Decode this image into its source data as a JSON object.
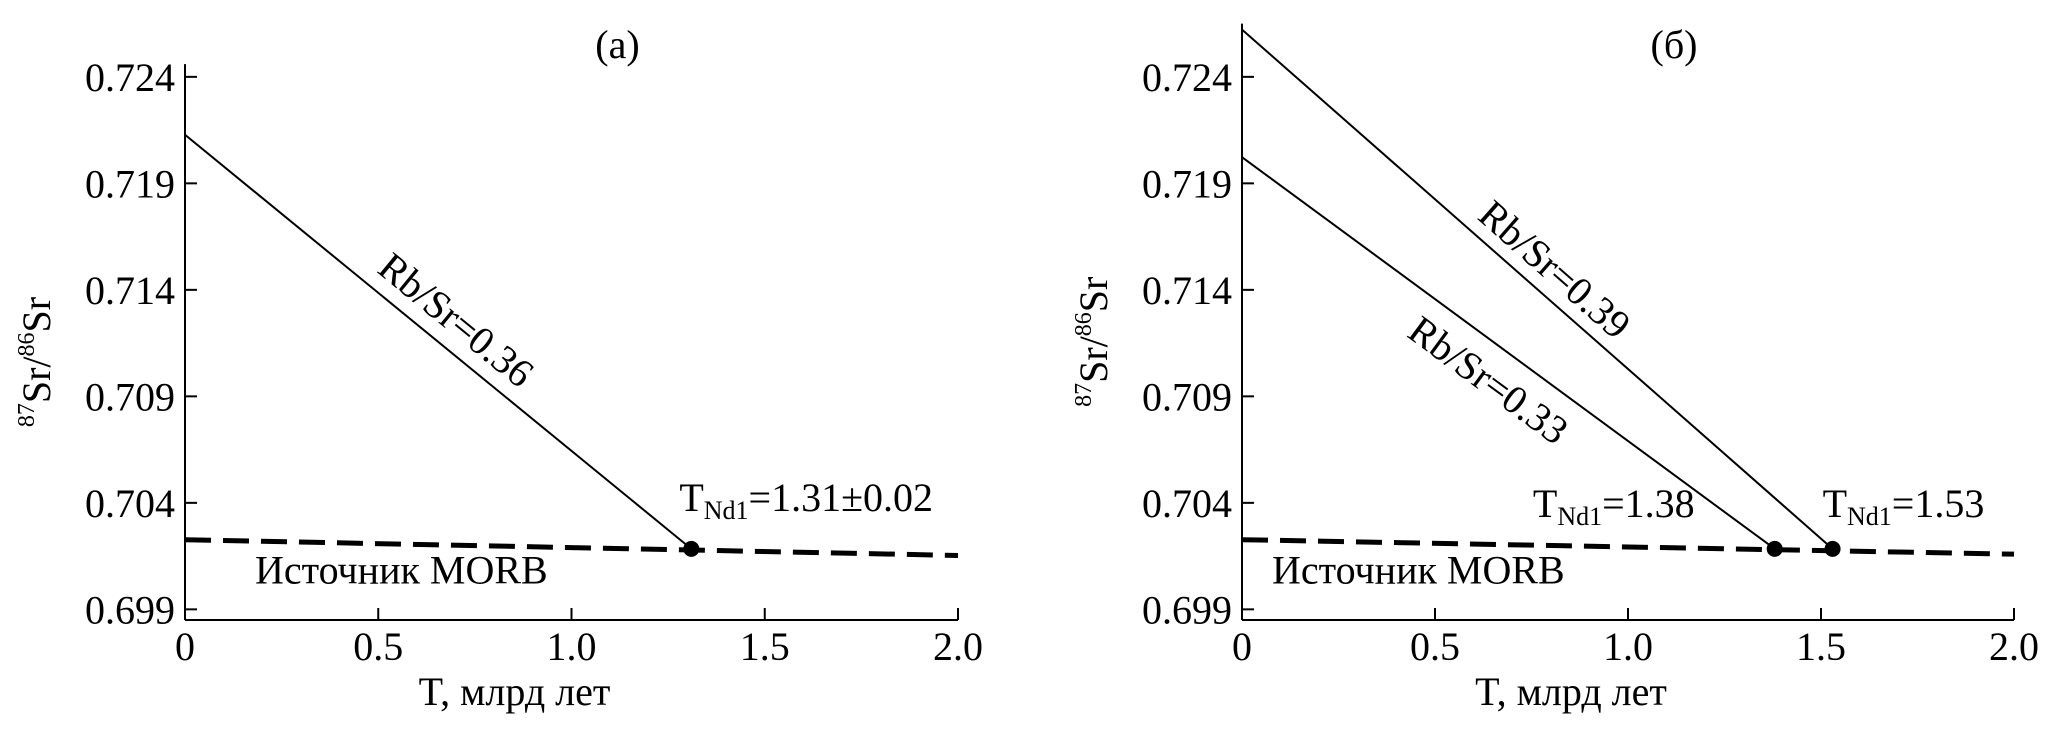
{
  "chart_data": [
    {
      "type": "line",
      "title": "(a)",
      "xlabel": "T, млрд лет",
      "ylabel": {
        "iso1": "87",
        "el1": "Sr/",
        "iso2": "86",
        "el2": "Sr"
      },
      "xlim": [
        0,
        2
      ],
      "xticks": [
        0,
        0.5,
        {
          "value": 1,
          "label": "1.0"
        },
        1.5,
        {
          "value": 2,
          "label": "2.0"
        }
      ],
      "ylim": [
        0.6985,
        0.7246
      ],
      "yticks": [
        0.699,
        0.704,
        0.709,
        0.714,
        0.719,
        0.724
      ],
      "series": [
        {
          "name": "Rb/Sr=0.36",
          "color": "#000000",
          "style": "solid",
          "x": [
            0,
            1.31
          ],
          "values": [
            0.72128,
            0.70184
          ]
        },
        {
          "name": "Источник MORB",
          "color": "#000000",
          "style": "dashed",
          "x": [
            0,
            2
          ],
          "values": [
            0.70227,
            0.70153
          ]
        }
      ],
      "markers": [
        {
          "x": 1.31,
          "y": 0.70184,
          "label_base": "T",
          "label_sub": "Nd1",
          "label_rest": "=1.31±0.02"
        }
      ]
    },
    {
      "type": "line",
      "title": "(б)",
      "xlabel": "T, млрд лет",
      "ylabel": {
        "iso1": "87",
        "el1": "Sr/",
        "iso2": "86",
        "el2": "Sr"
      },
      "xlim": [
        0,
        2
      ],
      "xticks": [
        0,
        0.5,
        {
          "value": 1,
          "label": "1.0"
        },
        1.5,
        {
          "value": 2,
          "label": "2.0"
        }
      ],
      "ylim": [
        0.6985,
        0.7265
      ],
      "yticks": [
        0.699,
        0.704,
        0.709,
        0.714,
        0.719,
        0.724
      ],
      "series": [
        {
          "name": "Rb/Sr=0.39",
          "color": "#000000",
          "style": "solid",
          "x": [
            0,
            1.53
          ],
          "values": [
            0.72622,
            0.70184
          ]
        },
        {
          "name": "Rb/Sr=0.33",
          "color": "#000000",
          "style": "solid",
          "x": [
            0,
            1.38
          ],
          "values": [
            0.72023,
            0.70184
          ]
        },
        {
          "name": "Источник MORB",
          "color": "#000000",
          "style": "dashed",
          "x": [
            0,
            2
          ],
          "values": [
            0.70227,
            0.70159
          ]
        }
      ],
      "markers": [
        {
          "x": 1.38,
          "y": 0.70184,
          "label_base": "T",
          "label_sub": "Nd1",
          "label_rest": "=1.38"
        },
        {
          "x": 1.53,
          "y": 0.70184,
          "label_base": "T",
          "label_sub": "Nd1",
          "label_rest": "=1.53"
        }
      ]
    }
  ]
}
